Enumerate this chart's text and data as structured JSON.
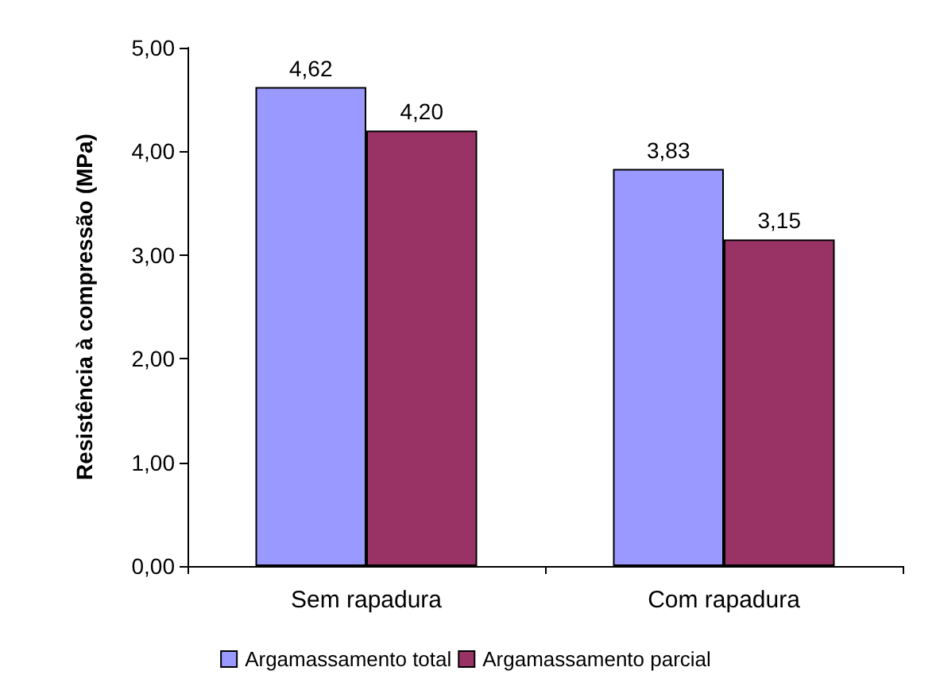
{
  "chart_data": {
    "type": "bar",
    "ylabel": "Resistência à compressão (MPa)",
    "categories": [
      "Sem rapadura",
      "Com rapadura"
    ],
    "series": [
      {
        "name": "Argamassamento total",
        "color": "#9999ff",
        "values": [
          4.62,
          3.83
        ],
        "value_labels": [
          "4,62",
          "3,83"
        ]
      },
      {
        "name": "Argamassamento parcial",
        "color": "#993366",
        "values": [
          4.2,
          3.15
        ],
        "value_labels": [
          "4,20",
          "3,15"
        ]
      }
    ],
    "ylim": [
      0,
      5
    ],
    "yticks": [
      {
        "value": 0,
        "label": "0,00"
      },
      {
        "value": 1,
        "label": "1,00"
      },
      {
        "value": 2,
        "label": "2,00"
      },
      {
        "value": 3,
        "label": "3,00"
      },
      {
        "value": 4,
        "label": "4,00"
      },
      {
        "value": 5,
        "label": "5,00"
      }
    ],
    "grid": false,
    "legend": "bottom"
  }
}
